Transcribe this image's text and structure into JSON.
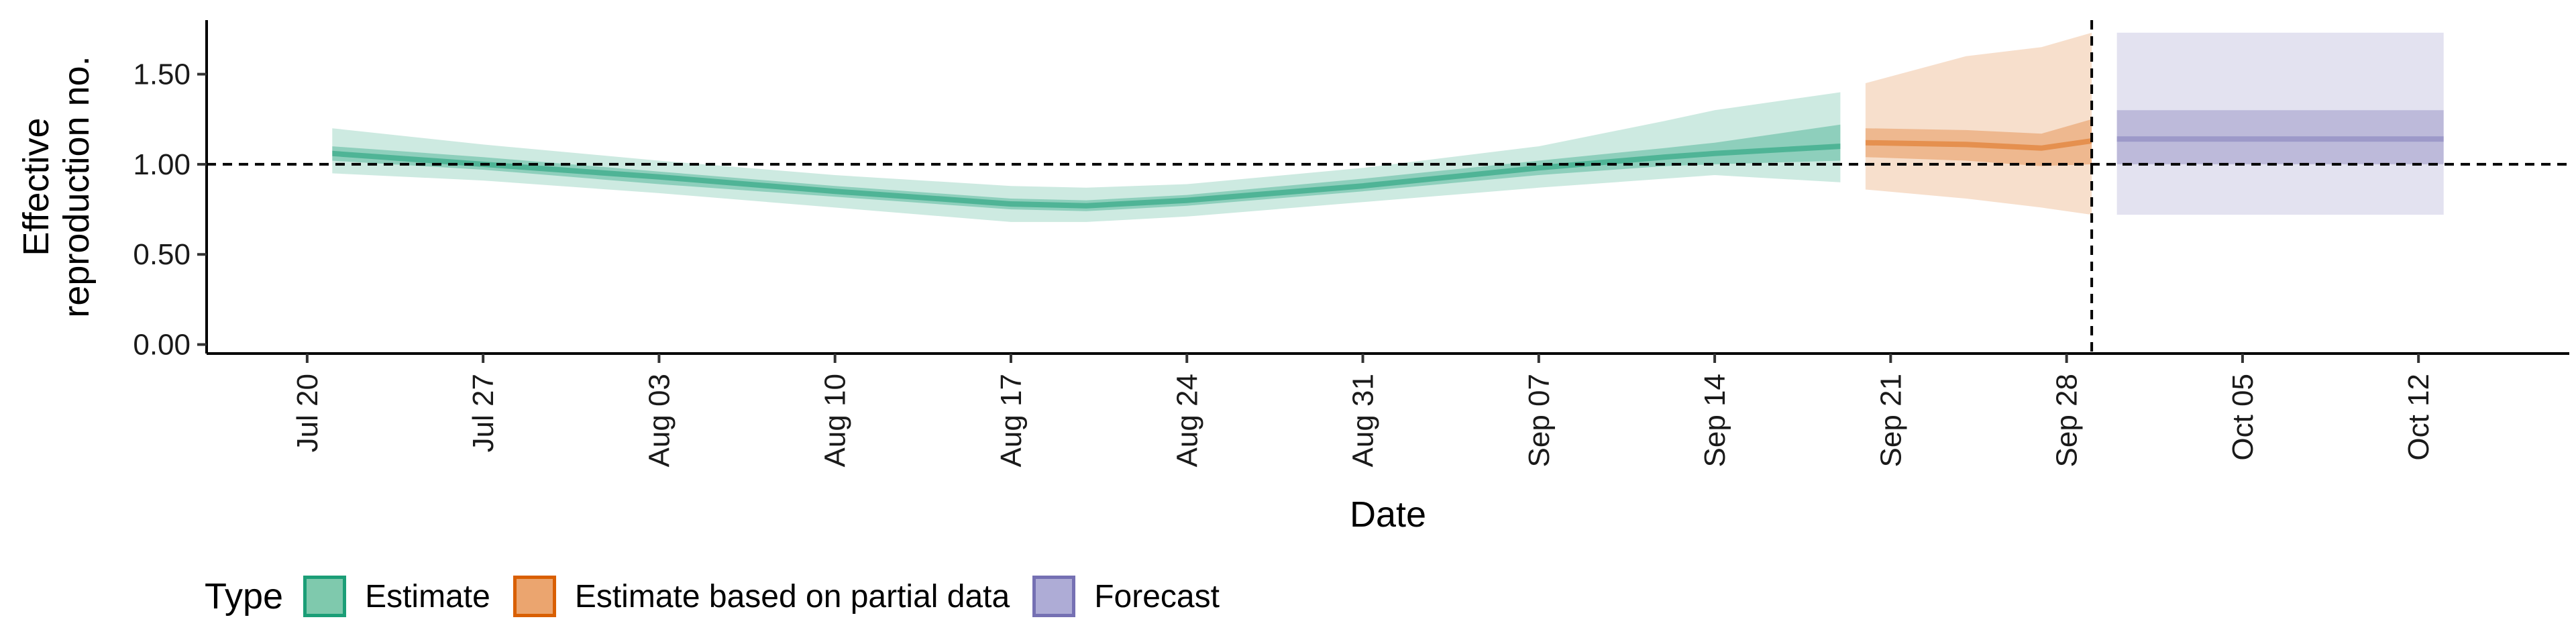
{
  "chart_data": {
    "type": "area",
    "ylabel_lines": [
      "Effective",
      "reproduction no."
    ],
    "xlabel": "Date",
    "ylim": [
      -0.05,
      1.8
    ],
    "yticks": [
      0.0,
      0.5,
      1.0,
      1.5
    ],
    "ytick_labels": [
      "0.00",
      "0.50",
      "1.00",
      "1.50"
    ],
    "xlim": [
      "2020-07-16",
      "2020-10-18"
    ],
    "xticks": [
      "2020-07-20",
      "2020-07-27",
      "2020-08-03",
      "2020-08-10",
      "2020-08-17",
      "2020-08-24",
      "2020-08-31",
      "2020-09-07",
      "2020-09-14",
      "2020-09-21",
      "2020-09-28",
      "2020-10-05",
      "2020-10-12"
    ],
    "xtick_labels": [
      "Jul 20",
      "Jul 27",
      "Aug 03",
      "Aug 10",
      "Aug 17",
      "Aug 24",
      "Aug 31",
      "Sep 07",
      "Sep 14",
      "Sep 21",
      "Sep 28",
      "Oct 05",
      "Oct 12"
    ],
    "hline": 1.0,
    "vline": "2020-09-29",
    "grid": false,
    "legend_position": "bottom-left",
    "legend_title": "Type",
    "series": [
      {
        "name": "Estimate",
        "color": "#1b9e77",
        "points": [
          {
            "date": "2020-07-21",
            "median": 1.06,
            "lo50": 1.02,
            "hi50": 1.1,
            "lo90": 0.95,
            "hi90": 1.2
          },
          {
            "date": "2020-07-27",
            "median": 1.0,
            "lo50": 0.97,
            "hi50": 1.04,
            "lo90": 0.91,
            "hi90": 1.11
          },
          {
            "date": "2020-08-03",
            "median": 0.93,
            "lo50": 0.89,
            "hi50": 0.96,
            "lo90": 0.84,
            "hi90": 1.02
          },
          {
            "date": "2020-08-10",
            "median": 0.85,
            "lo50": 0.82,
            "hi50": 0.88,
            "lo90": 0.76,
            "hi90": 0.94
          },
          {
            "date": "2020-08-17",
            "median": 0.78,
            "lo50": 0.75,
            "hi50": 0.81,
            "lo90": 0.68,
            "hi90": 0.88
          },
          {
            "date": "2020-08-20",
            "median": 0.77,
            "lo50": 0.74,
            "hi50": 0.8,
            "lo90": 0.68,
            "hi90": 0.87
          },
          {
            "date": "2020-08-24",
            "median": 0.8,
            "lo50": 0.77,
            "hi50": 0.83,
            "lo90": 0.71,
            "hi90": 0.89
          },
          {
            "date": "2020-08-31",
            "median": 0.88,
            "lo50": 0.85,
            "hi50": 0.92,
            "lo90": 0.79,
            "hi90": 0.98
          },
          {
            "date": "2020-09-07",
            "median": 0.98,
            "lo50": 0.94,
            "hi50": 1.02,
            "lo90": 0.87,
            "hi90": 1.1
          },
          {
            "date": "2020-09-12",
            "median": 1.04,
            "lo50": 0.99,
            "hi50": 1.09,
            "lo90": 0.92,
            "hi90": 1.24
          },
          {
            "date": "2020-09-14",
            "median": 1.06,
            "lo50": 1.0,
            "hi50": 1.12,
            "lo90": 0.94,
            "hi90": 1.3
          },
          {
            "date": "2020-09-19",
            "median": 1.1,
            "lo50": 1.02,
            "hi50": 1.22,
            "lo90": 0.9,
            "hi90": 1.4
          }
        ]
      },
      {
        "name": "Estimate based on partial data",
        "color": "#d95f02",
        "points": [
          {
            "date": "2020-09-20",
            "median": 1.12,
            "lo50": 1.04,
            "hi50": 1.2,
            "lo90": 0.86,
            "hi90": 1.45
          },
          {
            "date": "2020-09-24",
            "median": 1.11,
            "lo50": 1.02,
            "hi50": 1.19,
            "lo90": 0.81,
            "hi90": 1.6
          },
          {
            "date": "2020-09-27",
            "median": 1.09,
            "lo50": 0.99,
            "hi50": 1.17,
            "lo90": 0.76,
            "hi90": 1.65
          },
          {
            "date": "2020-09-29",
            "median": 1.13,
            "lo50": 1.0,
            "hi50": 1.25,
            "lo90": 0.72,
            "hi90": 1.73
          }
        ]
      },
      {
        "name": "Forecast",
        "color": "#7570b3",
        "points": [
          {
            "date": "2020-09-30",
            "median": 1.14,
            "lo50": 1.0,
            "hi50": 1.3,
            "lo90": 0.72,
            "hi90": 1.73
          },
          {
            "date": "2020-10-13",
            "median": 1.14,
            "lo50": 1.0,
            "hi50": 1.3,
            "lo90": 0.72,
            "hi90": 1.73
          }
        ]
      }
    ]
  }
}
